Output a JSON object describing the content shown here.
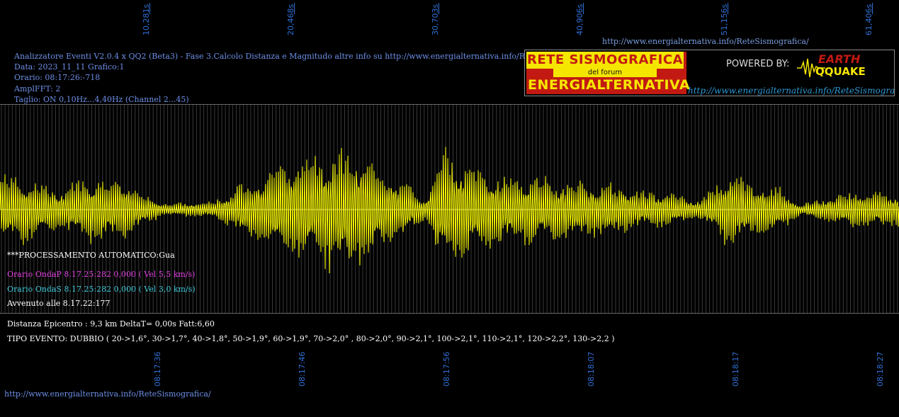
{
  "top_axis": [
    "10,281s",
    "20,468s",
    "30,703s",
    "40,906s",
    "51,156s",
    "61,406s"
  ],
  "bottom_axis": [
    "08:17:36",
    "08:17:46",
    "08:17:56",
    "08:18:07",
    "08:18:17",
    "08:18:27"
  ],
  "header_url": "http://www.energialternativa.info/ReteSismografica/",
  "info": {
    "line1": "Analizzatore Eventi V2.0.4 x QQ2 (Beta3) - Fase 3.Calcolo Distanza e Magnitudo altre info su http://www.energialternativa.info/ReteSism",
    "line2": "Data: 2023_11_11 Grafico:1",
    "line3": "Orario: 08:17:26:-718",
    "line4": "AmplFFT: 2",
    "line5": "Taglio: ON 0,10Hz...4,40Hz       (Channel 2...45)"
  },
  "banner": {
    "title1": "RETE SISMOGRAFICA",
    "title2": "del forum",
    "title3": "ENERGIALTERNATIVA",
    "powered": "POWERED BY:",
    "logo1": "EARTH",
    "logo2": "QQUAKE",
    "url": "http://www.energialternativa.info/ReteSismografica"
  },
  "messages": {
    "processing": "***PROCESSAMENTO AUTOMATICO:Gua",
    "onda_p": "Orario OndaP 8.17.25:282  0,000 ( Vel 5,5 km/s)",
    "onda_s": "Orario OndaS 8.17.25:282  0,000 ( Vel 3,0 km/s)",
    "avvenuto": "Avvenuto alle 8.17.22:177",
    "distanza": "Distanza Epicentro : 9,3 km DeltaT= 0,00s  Fatt:6,60",
    "tipo": "TIPO EVENTO: DUBBIO ( 20->1,6°, 30->1,7°, 40->1,8°, 50->1,9°, 60->1,9°, 70->2,0° , 80->2,0°, 90->2,1°, 100->2,1°, 110->2,1°, 120->2,2°, 130->2,2 )"
  },
  "footer_url": "http://www.energialternativa.info/ReteSismografica/",
  "colors": {
    "trace": "#ffff00",
    "axis_labels": "#2f6fd6",
    "onda_p": "#e040e0",
    "onda_s": "#40c8d8"
  }
}
